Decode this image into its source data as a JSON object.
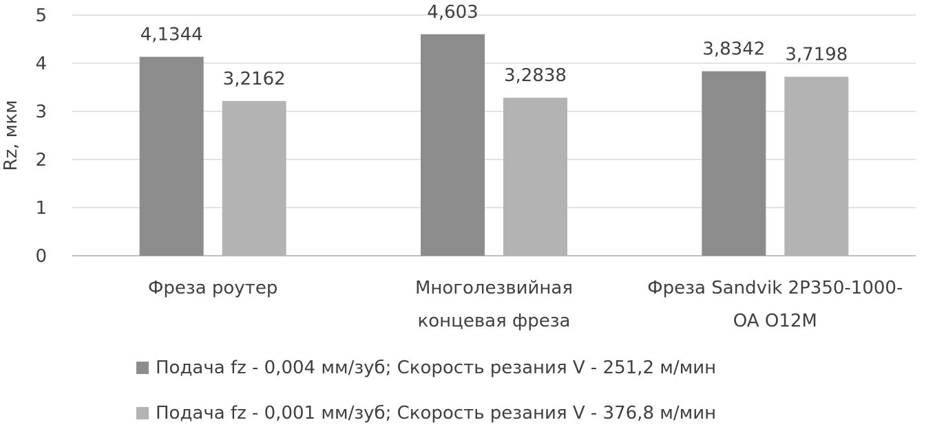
{
  "chart_data": {
    "type": "bar",
    "title": "",
    "xlabel": "",
    "ylabel": "Rz, мкм",
    "ylim": [
      0,
      5
    ],
    "yticks": [
      "0",
      "1",
      "2",
      "3",
      "4",
      "5"
    ],
    "grid": true,
    "legend_position": "bottom",
    "categories": [
      [
        "Фреза роутер"
      ],
      [
        "Многолезвийная",
        "концевая фреза"
      ],
      [
        "Фреза Sandvik 2P350-1000-",
        "OA O12M"
      ]
    ],
    "series": [
      {
        "name": "Подача fz - 0,004 мм/зуб; Скорость резания V - 251,2 м/мин",
        "color": "#8c8c8c",
        "values": [
          4.1344,
          4.603,
          3.8342
        ],
        "labels": [
          "4,1344",
          "4,603",
          "3,8342"
        ]
      },
      {
        "name": "Подача fz - 0,001 мм/зуб; Скорость резания V - 376,8 м/мин",
        "color": "#b3b3b3",
        "values": [
          3.2162,
          3.2838,
          3.7198
        ],
        "labels": [
          "3,2162",
          "3,2838",
          "3,7198"
        ]
      }
    ]
  }
}
